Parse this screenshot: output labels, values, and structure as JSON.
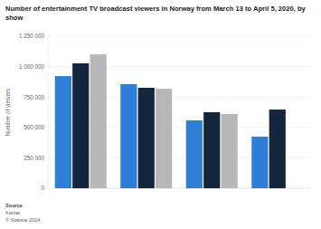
{
  "chart_data": {
    "type": "bar",
    "title": "Number of entertainment TV broadcast viewers in Norway from March 13 to April 5, 2020, by show",
    "y_label": "Number of viewers",
    "source_label": "Source",
    "source": "Kantar",
    "copyright": "© Statista 2024",
    "categories": [
      null,
      null,
      null,
      null
    ],
    "series": [
      {
        "color": "#2f7ed8",
        "values": [
          922000,
          856000,
          558000,
          424000
        ]
      },
      {
        "color": "#14253d",
        "values": [
          1027000,
          826000,
          625000,
          647000
        ]
      },
      {
        "color": "#b7b7b7",
        "values": [
          1101000,
          818000,
          610000,
          null
        ]
      }
    ],
    "ylim": [
      0,
      1250000
    ],
    "yticks": [
      0,
      {
        "value": 250000,
        "label": "250 000"
      },
      {
        "value": 500000,
        "label": "500 000"
      },
      {
        "value": 750000,
        "label": "750 000"
      },
      {
        "value": 1000000,
        "label": "1 000 000"
      },
      {
        "value": 1250000,
        "label": "1 250 000"
      }
    ],
    "grid": true,
    "tick_labels": "y"
  }
}
